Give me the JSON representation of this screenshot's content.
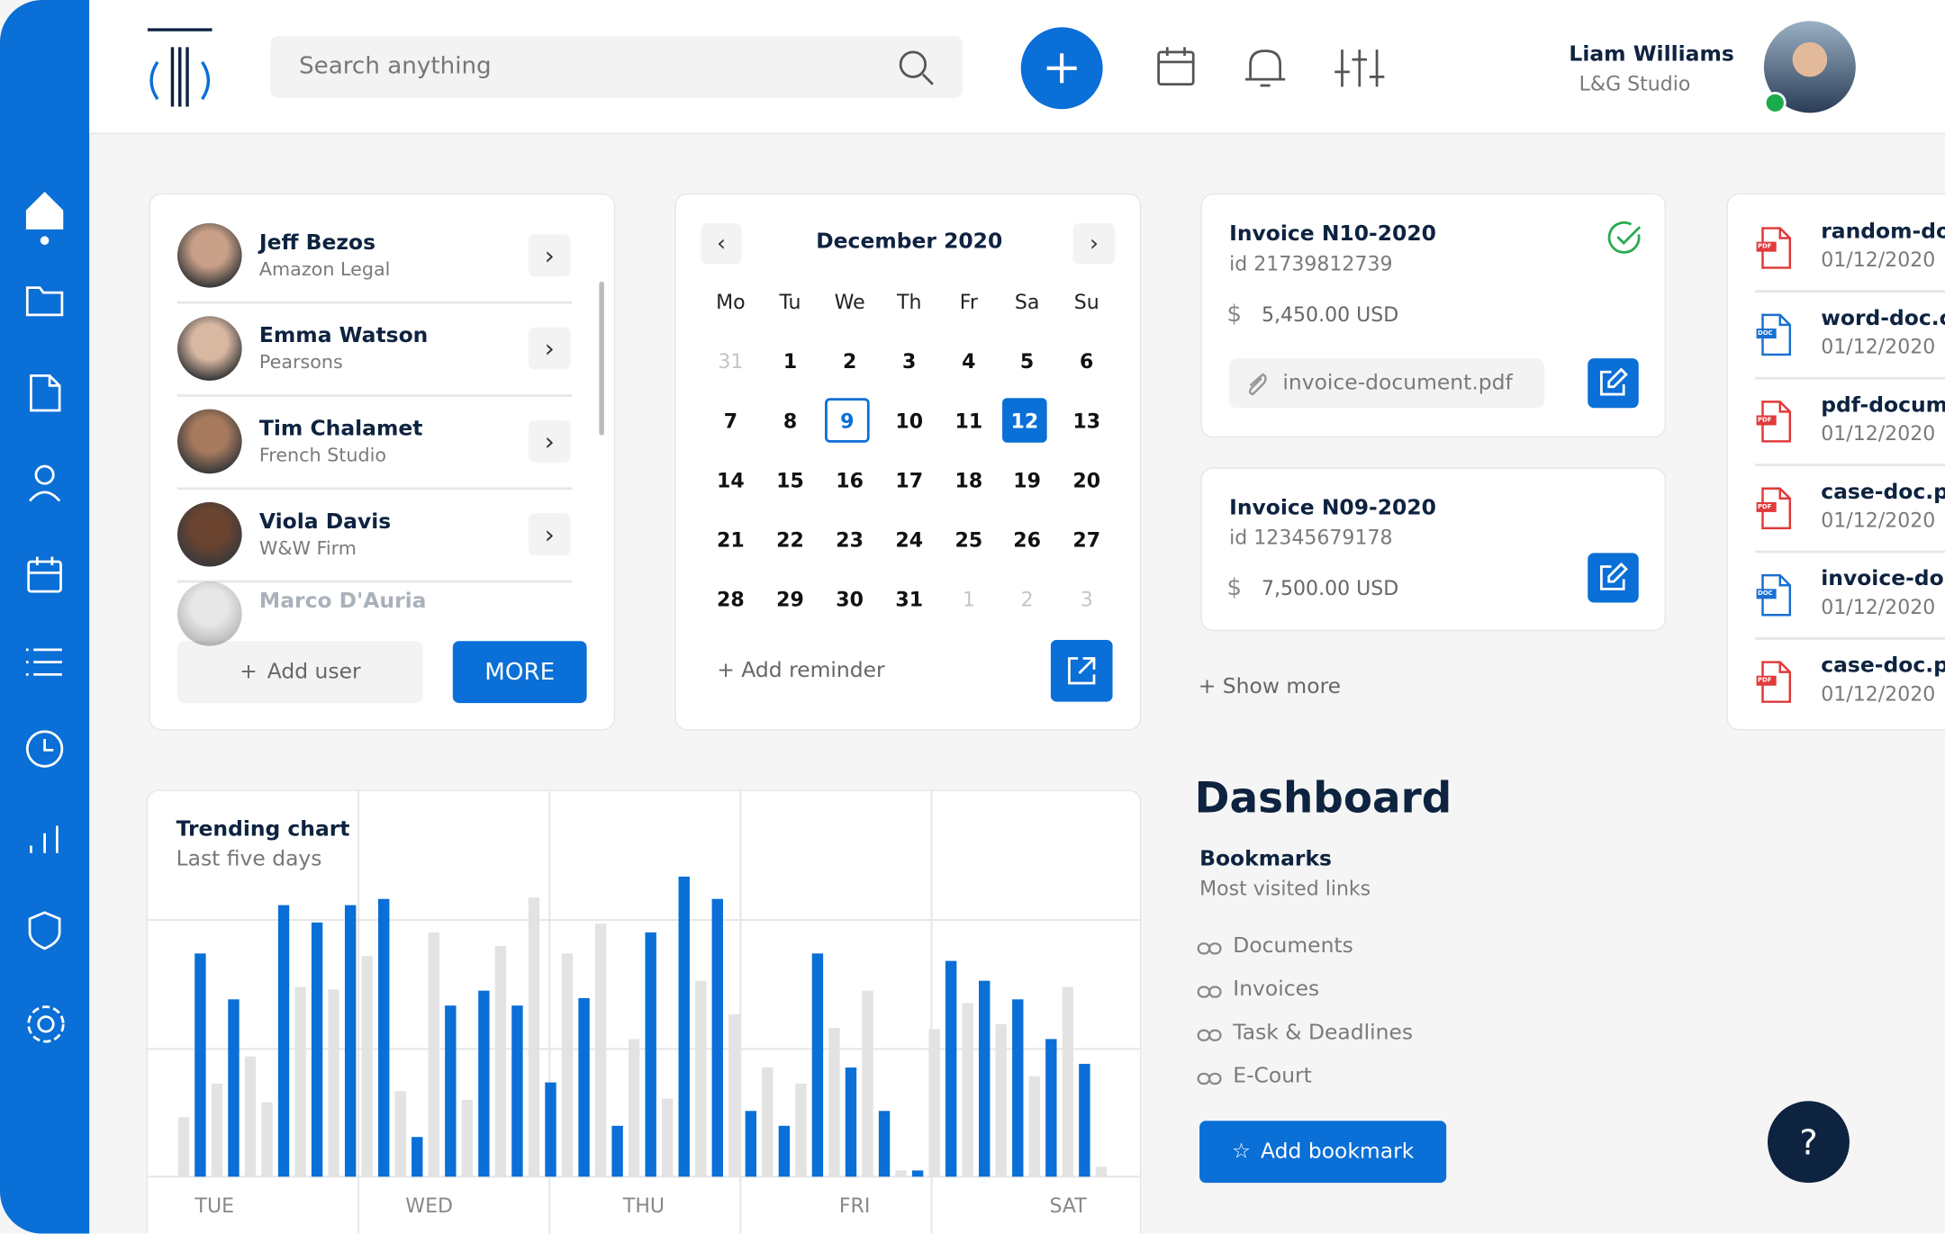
{
  "header": {
    "search_placeholder": "Search anything",
    "user_name": "Liam Williams",
    "user_company": "L&G Studio"
  },
  "contacts": {
    "items": [
      {
        "name": "Jeff Bezos",
        "company": "Amazon Legal"
      },
      {
        "name": "Emma Watson",
        "company": "Pearsons"
      },
      {
        "name": "Tim Chalamet",
        "company": "French Studio"
      },
      {
        "name": "Viola Davis",
        "company": "W&W Firm"
      },
      {
        "name": "Marco D'Auria"
      }
    ],
    "add_user": "Add user",
    "more": "MORE"
  },
  "calendar": {
    "title": "December 2020",
    "weekdays": [
      "Mo",
      "Tu",
      "We",
      "Th",
      "Fr",
      "Sa",
      "Su"
    ],
    "weeks": [
      [
        31,
        1,
        2,
        3,
        4,
        5,
        6
      ],
      [
        7,
        8,
        9,
        10,
        11,
        12,
        13
      ],
      [
        14,
        15,
        16,
        17,
        18,
        19,
        20
      ],
      [
        21,
        22,
        23,
        24,
        25,
        26,
        27
      ],
      [
        28,
        29,
        30,
        31,
        1,
        2,
        3
      ]
    ],
    "add_reminder": "Add reminder"
  },
  "invoices": {
    "items": [
      {
        "title": "Invoice N10-2020",
        "id": "id 21739812739",
        "currency": "$",
        "amount": "5,450.00 USD",
        "attachment": "invoice-document.pdf"
      },
      {
        "title": "Invoice N09-2020",
        "id": "id 12345679178",
        "currency": "$",
        "amount": "7,500.00 USD"
      }
    ],
    "show_more": "Show more"
  },
  "files": {
    "items": [
      {
        "name": "random-do",
        "date": "01/12/2020",
        "kind": "PDF"
      },
      {
        "name": "word-doc.c",
        "date": "01/12/2020",
        "kind": "DOC"
      },
      {
        "name": "pdf-docum",
        "date": "01/12/2020",
        "kind": "PDF"
      },
      {
        "name": "case-doc.p",
        "date": "01/12/2020",
        "kind": "PDF"
      },
      {
        "name": "invoice-do",
        "date": "01/12/2020",
        "kind": "DOC"
      },
      {
        "name": "case-doc.p",
        "date": "01/12/2020",
        "kind": "PDF"
      }
    ]
  },
  "chart_data": {
    "type": "bar",
    "title": "Trending chart",
    "subtitle": "Last five days",
    "x_labels": [
      "TUE",
      "WED",
      "THU",
      "FRI",
      "SAT"
    ],
    "values": [
      48,
      180,
      75,
      143,
      97,
      60,
      219,
      153,
      205,
      151,
      219,
      178,
      224,
      69,
      32,
      197,
      138,
      62,
      150,
      186,
      138,
      225,
      76,
      180,
      144,
      204,
      41,
      111,
      197,
      63,
      242,
      158,
      224,
      131,
      53,
      88,
      41,
      75,
      180,
      120,
      88,
      150,
      53,
      5,
      5,
      119,
      174,
      140,
      158,
      123,
      143,
      81,
      111,
      153,
      91,
      8
    ],
    "colors": [
      "#e3e3e3",
      "#0a6fd6",
      "#e3e3e3",
      "#0a6fd6",
      "#e3e3e3",
      "#e3e3e3",
      "#0a6fd6",
      "#e3e3e3",
      "#0a6fd6",
      "#e3e3e3",
      "#0a6fd6",
      "#e3e3e3",
      "#0a6fd6",
      "#e3e3e3",
      "#0a6fd6",
      "#e3e3e3",
      "#0a6fd6",
      "#e3e3e3",
      "#0a6fd6",
      "#e3e3e3",
      "#0a6fd6",
      "#e3e3e3",
      "#0a6fd6",
      "#e3e3e3",
      "#0a6fd6",
      "#e3e3e3",
      "#0a6fd6",
      "#e3e3e3",
      "#0a6fd6",
      "#e3e3e3",
      "#0a6fd6",
      "#e3e3e3",
      "#0a6fd6",
      "#e3e3e3",
      "#0a6fd6",
      "#e3e3e3",
      "#0a6fd6",
      "#e3e3e3",
      "#0a6fd6",
      "#e3e3e3",
      "#0a6fd6",
      "#e3e3e3",
      "#0a6fd6",
      "#e3e3e3",
      "#0a6fd6",
      "#e3e3e3",
      "#0a6fd6",
      "#e3e3e3",
      "#0a6fd6",
      "#e3e3e3",
      "#0a6fd6",
      "#e3e3e3",
      "#0a6fd6",
      "#e3e3e3",
      "#0a6fd6",
      "#e3e3e3"
    ]
  },
  "dashboard": {
    "title": "Dashboard",
    "bookmarks_title": "Bookmarks",
    "bookmarks_subtitle": "Most visited links",
    "links": [
      "Documents",
      "Invoices",
      "Task & Deadlines",
      "E-Court"
    ],
    "add_bookmark": "Add bookmark",
    "help": "?"
  }
}
